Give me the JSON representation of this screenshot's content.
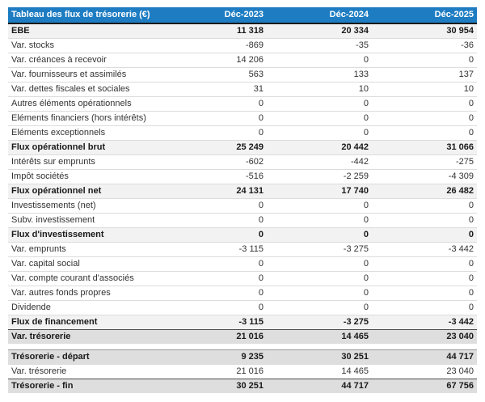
{
  "table": {
    "title": "Tableau des flux de trésorerie (€)",
    "columns": [
      "Déc-2023",
      "Déc-2024",
      "Déc-2025"
    ],
    "colors": {
      "header_bg": "#1E7DC2",
      "header_text": "#ffffff",
      "header_border": "#1a1a1a",
      "subtotal_bg": "#F2F2F2",
      "highlight_bg": "#DEDEDE",
      "row_separator": "#DCDCDC",
      "strong_border": "#4d4d4d",
      "mid_border": "#9a9a9a"
    },
    "rows": [
      {
        "label": "EBE",
        "values": [
          "11 318",
          "20 334",
          "30 954"
        ],
        "type": "subtotal"
      },
      {
        "label": "Var. stocks",
        "values": [
          "-869",
          "-35",
          "-36"
        ],
        "type": "normal"
      },
      {
        "label": "Var. créances à recevoir",
        "values": [
          "14 206",
          "0",
          "0"
        ],
        "type": "normal"
      },
      {
        "label": "Var. fournisseurs et assimilés",
        "values": [
          "563",
          "133",
          "137"
        ],
        "type": "normal"
      },
      {
        "label": "Var. dettes fiscales et sociales",
        "values": [
          "31",
          "10",
          "10"
        ],
        "type": "normal"
      },
      {
        "label": "Autres éléments opérationnels",
        "values": [
          "0",
          "0",
          "0"
        ],
        "type": "normal"
      },
      {
        "label": "Eléments financiers (hors intérêts)",
        "values": [
          "0",
          "0",
          "0"
        ],
        "type": "normal"
      },
      {
        "label": "Eléments exceptionnels",
        "values": [
          "0",
          "0",
          "0"
        ],
        "type": "normal"
      },
      {
        "label": "Flux opérationnel brut",
        "values": [
          "25 249",
          "20 442",
          "31 066"
        ],
        "type": "subtotal"
      },
      {
        "label": "Intérêts sur emprunts",
        "values": [
          "-602",
          "-442",
          "-275"
        ],
        "type": "normal"
      },
      {
        "label": "Impôt sociétés",
        "values": [
          "-516",
          "-2 259",
          "-4 309"
        ],
        "type": "normal"
      },
      {
        "label": "Flux opérationnel net",
        "values": [
          "24 131",
          "17 740",
          "26 482"
        ],
        "type": "subtotal"
      },
      {
        "label": "Investissements (net)",
        "values": [
          "0",
          "0",
          "0"
        ],
        "type": "normal"
      },
      {
        "label": "Subv. investissement",
        "values": [
          "0",
          "0",
          "0"
        ],
        "type": "normal"
      },
      {
        "label": "Flux d'investissement",
        "values": [
          "0",
          "0",
          "0"
        ],
        "type": "subtotal"
      },
      {
        "label": "Var. emprunts",
        "values": [
          "-3 115",
          "-3 275",
          "-3 442"
        ],
        "type": "normal"
      },
      {
        "label": "Var. capital social",
        "values": [
          "0",
          "0",
          "0"
        ],
        "type": "normal"
      },
      {
        "label": "Var. compte courant d'associés",
        "values": [
          "0",
          "0",
          "0"
        ],
        "type": "normal"
      },
      {
        "label": "Var. autres fonds propres",
        "values": [
          "0",
          "0",
          "0"
        ],
        "type": "normal"
      },
      {
        "label": "Dividende",
        "values": [
          "0",
          "0",
          "0"
        ],
        "type": "normal"
      },
      {
        "label": "Flux de financement",
        "values": [
          "-3 115",
          "-3 275",
          "-3 442"
        ],
        "type": "subtotal"
      },
      {
        "label": "Var. trésorerie",
        "values": [
          "21 016",
          "14 465",
          "23 040"
        ],
        "type": "highlight"
      },
      {
        "label": "Trésorerie - départ",
        "values": [
          "9 235",
          "30 251",
          "44 717"
        ],
        "type": "highlight"
      },
      {
        "label": "Var. trésorerie",
        "values": [
          "21 016",
          "14 465",
          "23 040"
        ],
        "type": "normal"
      },
      {
        "label": "Trésorerie - fin",
        "values": [
          "30 251",
          "44 717",
          "67 756"
        ],
        "type": "highlight"
      }
    ]
  }
}
